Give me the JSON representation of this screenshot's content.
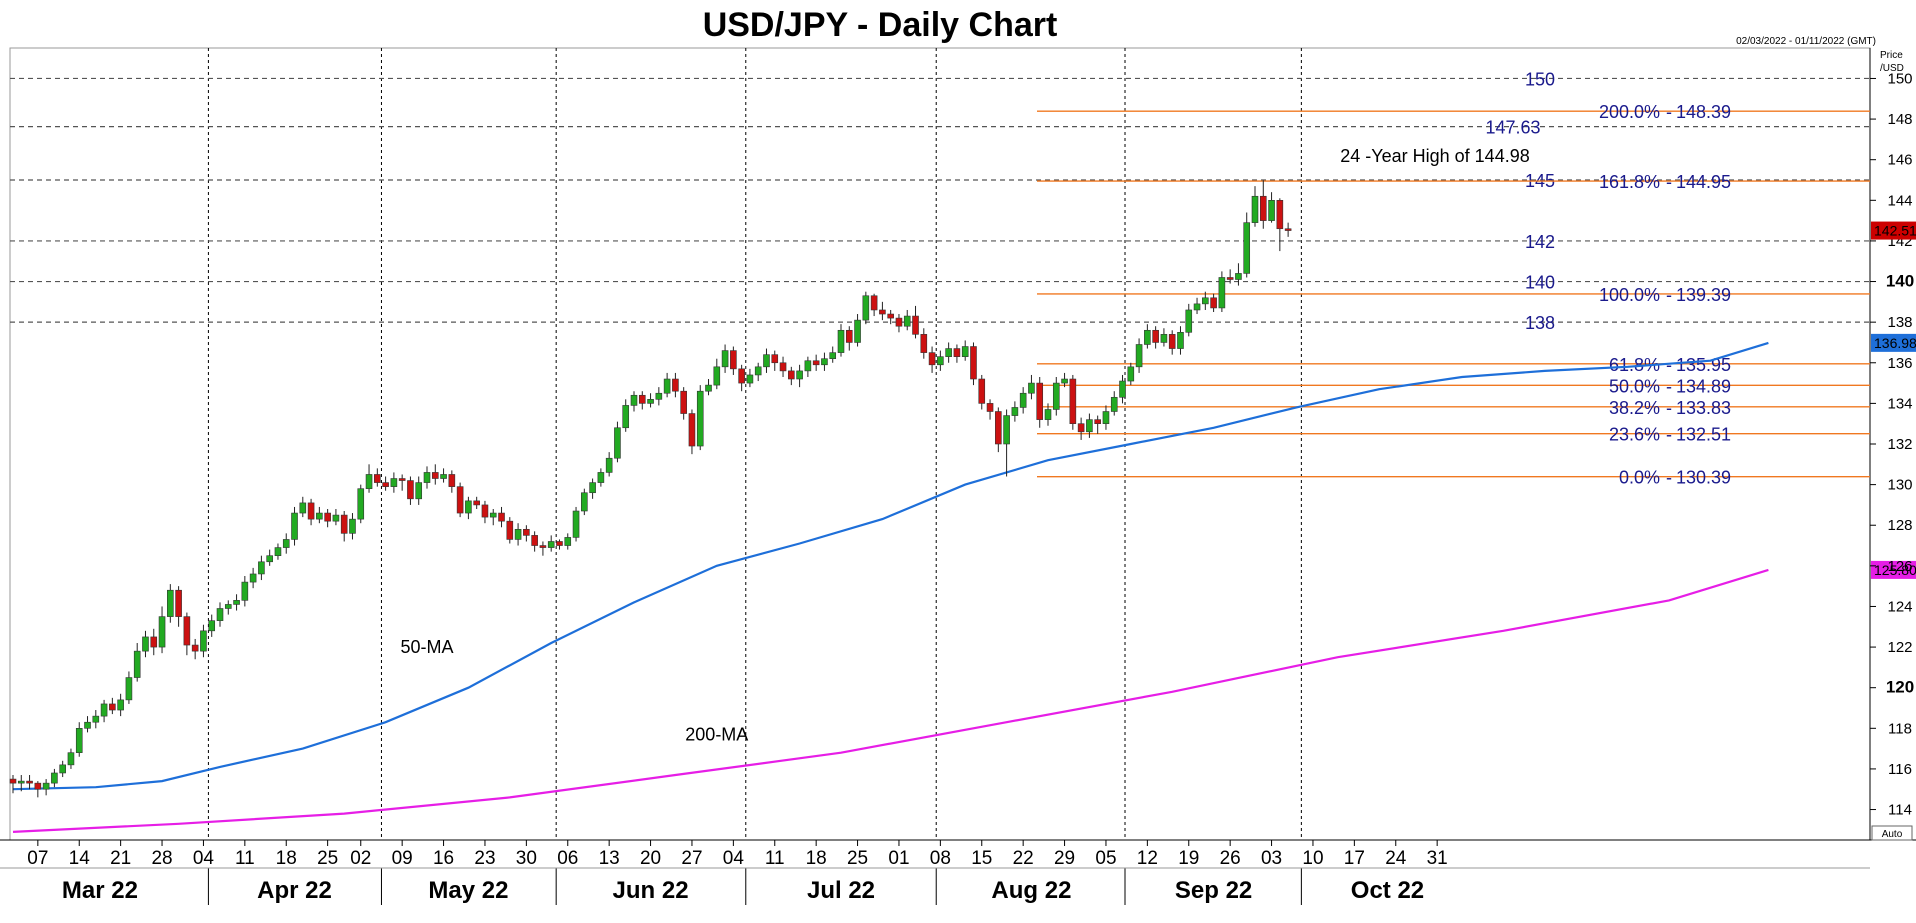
{
  "chart_data": {
    "type": "candlestick",
    "title": "USD/JPY - Daily Chart",
    "date_range": "02/03/2022 - 01/11/2022 (GMT)",
    "price_axis_label": "Price\n/USD",
    "auto_label": "Auto",
    "ylim": [
      112.5,
      151.5
    ],
    "y_ticks": [
      {
        "v": 114,
        "label": "114",
        "bold": false
      },
      {
        "v": 116,
        "label": "116",
        "bold": false
      },
      {
        "v": 118,
        "label": "118",
        "bold": false
      },
      {
        "v": 120,
        "label": "120",
        "bold": true
      },
      {
        "v": 122,
        "label": "122",
        "bold": false
      },
      {
        "v": 124,
        "label": "124",
        "bold": false
      },
      {
        "v": 126,
        "label": "126",
        "bold": false
      },
      {
        "v": 128,
        "label": "128",
        "bold": false
      },
      {
        "v": 130,
        "label": "130",
        "bold": false
      },
      {
        "v": 132,
        "label": "132",
        "bold": false
      },
      {
        "v": 134,
        "label": "134",
        "bold": false
      },
      {
        "v": 136,
        "label": "136",
        "bold": false
      },
      {
        "v": 138,
        "label": "138",
        "bold": false
      },
      {
        "v": 140,
        "label": "140",
        "bold": true
      },
      {
        "v": 142,
        "label": "142",
        "bold": false
      },
      {
        "v": 144,
        "label": "144",
        "bold": false
      },
      {
        "v": 146,
        "label": "146",
        "bold": false
      },
      {
        "v": 148,
        "label": "148",
        "bold": false
      },
      {
        "v": 150,
        "label": "150",
        "bold": false
      }
    ],
    "x_day_ticks": [
      "07",
      "14",
      "21",
      "28",
      "04",
      "11",
      "18",
      "25",
      "02",
      "09",
      "16",
      "23",
      "30",
      "06",
      "13",
      "20",
      "27",
      "04",
      "11",
      "18",
      "25",
      "01",
      "08",
      "15",
      "22",
      "29",
      "05",
      "12",
      "19",
      "26",
      "03",
      "10",
      "17",
      "24",
      "31"
    ],
    "x_months": [
      "Mar 22",
      "Apr 22",
      "May 22",
      "Jun 22",
      "Jul 22",
      "Aug 22",
      "Sep 22",
      "Oct 22"
    ],
    "horizontal_levels": [
      {
        "value": 150,
        "label": "150"
      },
      {
        "value": 147.63,
        "label": "147.63"
      },
      {
        "value": 145,
        "label": "145"
      },
      {
        "value": 142,
        "label": "142"
      },
      {
        "value": 140,
        "label": "140"
      },
      {
        "value": 138,
        "label": "138"
      }
    ],
    "fibonacci": [
      {
        "pct": "200.0%",
        "value": 148.39,
        "label": "148.39"
      },
      {
        "pct": "161.8%",
        "value": 144.95,
        "label": "144.95"
      },
      {
        "pct": "100.0%",
        "value": 139.39,
        "label": "139.39"
      },
      {
        "pct": "61.8%",
        "value": 135.95,
        "label": "135.95"
      },
      {
        "pct": "50.0%",
        "value": 134.89,
        "label": "134.89"
      },
      {
        "pct": "38.2%",
        "value": 133.83,
        "label": "133.83"
      },
      {
        "pct": "23.6%",
        "value": 132.51,
        "label": "132.51"
      },
      {
        "pct": "0.0%",
        "value": 130.39,
        "label": "130.39"
      }
    ],
    "annotation": "24 -Year High of 144.98",
    "series": [
      {
        "name": "50-MA",
        "color": "#1e6fd9",
        "last_label": "136.98",
        "points": [
          [
            0,
            115.0
          ],
          [
            10,
            115.1
          ],
          [
            18,
            115.4
          ],
          [
            25,
            116.1
          ],
          [
            35,
            117.0
          ],
          [
            45,
            118.3
          ],
          [
            55,
            120.0
          ],
          [
            65,
            122.2
          ],
          [
            75,
            124.2
          ],
          [
            85,
            126.0
          ],
          [
            95,
            127.1
          ],
          [
            105,
            128.3
          ],
          [
            115,
            130.0
          ],
          [
            125,
            131.2
          ],
          [
            135,
            132.0
          ],
          [
            145,
            132.8
          ],
          [
            155,
            133.8
          ],
          [
            165,
            134.7
          ],
          [
            175,
            135.3
          ],
          [
            185,
            135.6
          ],
          [
            195,
            135.8
          ],
          [
            205,
            136.1
          ],
          [
            212,
            136.98
          ]
        ]
      },
      {
        "name": "200-MA",
        "color": "#e61ee6",
        "last_label": "125.80",
        "points": [
          [
            0,
            112.9
          ],
          [
            20,
            113.3
          ],
          [
            40,
            113.8
          ],
          [
            60,
            114.6
          ],
          [
            80,
            115.7
          ],
          [
            100,
            116.8
          ],
          [
            120,
            118.3
          ],
          [
            140,
            119.8
          ],
          [
            160,
            121.5
          ],
          [
            180,
            122.8
          ],
          [
            200,
            124.3
          ],
          [
            212,
            125.8
          ]
        ]
      }
    ],
    "last_price": {
      "value": 142.51,
      "label": "142.51",
      "color": "#cc0000"
    },
    "candles": [
      [
        115.5,
        115.3,
        115.7,
        114.8
      ],
      [
        115.3,
        115.4,
        115.7,
        114.9
      ],
      [
        115.4,
        115.3,
        115.7,
        115.0
      ],
      [
        115.3,
        115.0,
        115.4,
        114.6
      ],
      [
        115.0,
        115.3,
        115.5,
        114.7
      ],
      [
        115.3,
        115.8,
        116.0,
        115.1
      ],
      [
        115.8,
        116.2,
        116.4,
        115.6
      ],
      [
        116.2,
        116.8,
        117.0,
        116.0
      ],
      [
        116.8,
        118.0,
        118.3,
        116.6
      ],
      [
        118.0,
        118.3,
        118.6,
        117.8
      ],
      [
        118.3,
        118.6,
        118.9,
        118.0
      ],
      [
        118.6,
        119.2,
        119.4,
        118.3
      ],
      [
        119.2,
        118.9,
        119.5,
        118.7
      ],
      [
        118.9,
        119.4,
        119.7,
        118.6
      ],
      [
        119.4,
        120.5,
        120.8,
        119.2
      ],
      [
        120.5,
        121.8,
        122.2,
        120.3
      ],
      [
        121.8,
        122.5,
        122.8,
        121.5
      ],
      [
        122.5,
        122.0,
        122.9,
        121.6
      ],
      [
        122.0,
        123.5,
        124.0,
        121.7
      ],
      [
        123.5,
        124.8,
        125.1,
        123.2
      ],
      [
        124.8,
        123.5,
        125.0,
        123.0
      ],
      [
        123.5,
        122.1,
        123.7,
        121.6
      ],
      [
        122.1,
        121.8,
        122.4,
        121.4
      ],
      [
        121.8,
        122.8,
        123.1,
        121.5
      ],
      [
        122.8,
        123.3,
        123.6,
        122.5
      ],
      [
        123.3,
        123.9,
        124.2,
        123.0
      ],
      [
        123.9,
        124.1,
        124.3,
        123.6
      ],
      [
        124.1,
        124.3,
        124.6,
        123.8
      ],
      [
        124.3,
        125.2,
        125.5,
        124.0
      ],
      [
        125.2,
        125.6,
        125.9,
        124.9
      ],
      [
        125.6,
        126.2,
        126.5,
        125.3
      ],
      [
        126.2,
        126.5,
        126.8,
        126.0
      ],
      [
        126.5,
        126.9,
        127.1,
        126.3
      ],
      [
        126.9,
        127.3,
        127.6,
        126.6
      ],
      [
        127.3,
        128.6,
        128.9,
        127.0
      ],
      [
        128.6,
        129.1,
        129.4,
        128.4
      ],
      [
        129.1,
        128.3,
        129.3,
        128.0
      ],
      [
        128.3,
        128.6,
        128.9,
        128.1
      ],
      [
        128.6,
        128.2,
        128.8,
        127.9
      ],
      [
        128.2,
        128.5,
        128.8,
        128.0
      ],
      [
        128.5,
        127.6,
        128.7,
        127.2
      ],
      [
        127.6,
        128.3,
        128.6,
        127.3
      ],
      [
        128.3,
        129.8,
        130.0,
        128.1
      ],
      [
        129.8,
        130.5,
        131.0,
        129.6
      ],
      [
        130.5,
        130.1,
        130.8,
        129.9
      ],
      [
        130.1,
        129.9,
        130.4,
        129.7
      ],
      [
        129.9,
        130.3,
        130.6,
        129.6
      ],
      [
        130.3,
        130.2,
        130.5,
        129.7
      ],
      [
        130.2,
        129.3,
        130.4,
        129.0
      ],
      [
        129.3,
        130.1,
        130.4,
        129.0
      ],
      [
        130.1,
        130.6,
        130.9,
        129.8
      ],
      [
        130.6,
        130.3,
        131.0,
        130.0
      ],
      [
        130.3,
        130.5,
        130.8,
        130.1
      ],
      [
        130.5,
        129.9,
        130.7,
        129.6
      ],
      [
        129.9,
        128.6,
        130.1,
        128.4
      ],
      [
        128.6,
        129.2,
        129.4,
        128.3
      ],
      [
        129.2,
        129.0,
        129.4,
        128.8
      ],
      [
        129.0,
        128.4,
        129.2,
        128.1
      ],
      [
        128.4,
        128.6,
        128.8,
        128.0
      ],
      [
        128.6,
        128.2,
        128.9,
        127.9
      ],
      [
        128.2,
        127.3,
        128.4,
        127.1
      ],
      [
        127.3,
        127.8,
        128.1,
        127.0
      ],
      [
        127.8,
        127.5,
        128.0,
        127.2
      ],
      [
        127.5,
        127.0,
        127.7,
        126.7
      ],
      [
        127.0,
        126.9,
        127.2,
        126.5
      ],
      [
        126.9,
        127.2,
        127.5,
        126.7
      ],
      [
        127.2,
        127.0,
        127.3,
        126.8
      ],
      [
        127.0,
        127.4,
        127.6,
        126.8
      ],
      [
        127.4,
        128.7,
        128.9,
        127.2
      ],
      [
        128.7,
        129.6,
        129.8,
        128.5
      ],
      [
        129.6,
        130.1,
        130.3,
        129.3
      ],
      [
        130.1,
        130.6,
        130.8,
        129.9
      ],
      [
        130.6,
        131.3,
        131.6,
        130.4
      ],
      [
        131.3,
        132.8,
        133.1,
        131.1
      ],
      [
        132.8,
        133.9,
        134.2,
        132.6
      ],
      [
        133.9,
        134.4,
        134.6,
        133.6
      ],
      [
        134.4,
        134.0,
        134.6,
        133.7
      ],
      [
        134.0,
        134.2,
        134.5,
        133.8
      ],
      [
        134.2,
        134.5,
        134.8,
        133.9
      ],
      [
        134.5,
        135.2,
        135.5,
        134.3
      ],
      [
        135.2,
        134.6,
        135.5,
        134.3
      ],
      [
        134.6,
        133.5,
        134.8,
        133.2
      ],
      [
        133.5,
        131.9,
        133.7,
        131.5
      ],
      [
        131.9,
        134.6,
        134.9,
        131.7
      ],
      [
        134.6,
        134.9,
        135.2,
        134.4
      ],
      [
        134.9,
        135.8,
        136.2,
        134.7
      ],
      [
        135.8,
        136.6,
        136.9,
        135.5
      ],
      [
        136.6,
        135.7,
        136.8,
        135.4
      ],
      [
        135.7,
        135.0,
        135.9,
        134.6
      ],
      [
        135.0,
        135.4,
        135.7,
        134.8
      ],
      [
        135.4,
        135.8,
        136.0,
        135.1
      ],
      [
        135.8,
        136.4,
        136.7,
        135.5
      ],
      [
        136.4,
        136.0,
        136.6,
        135.6
      ],
      [
        136.0,
        135.6,
        136.3,
        135.3
      ],
      [
        135.6,
        135.2,
        135.8,
        134.9
      ],
      [
        135.2,
        135.6,
        135.9,
        134.8
      ],
      [
        135.6,
        136.1,
        136.3,
        135.3
      ],
      [
        136.1,
        135.9,
        136.4,
        135.6
      ],
      [
        135.9,
        136.2,
        136.5,
        135.6
      ],
      [
        136.2,
        136.5,
        136.8,
        136.0
      ],
      [
        136.5,
        137.6,
        137.9,
        136.3
      ],
      [
        137.6,
        137.0,
        137.8,
        136.6
      ],
      [
        137.0,
        138.1,
        138.4,
        136.8
      ],
      [
        138.1,
        139.3,
        139.5,
        137.9
      ],
      [
        139.3,
        138.6,
        139.4,
        138.3
      ],
      [
        138.6,
        138.4,
        139.0,
        138.1
      ],
      [
        138.4,
        138.2,
        138.6,
        137.9
      ],
      [
        138.2,
        137.8,
        138.4,
        137.5
      ],
      [
        137.8,
        138.3,
        138.6,
        137.6
      ],
      [
        138.3,
        137.4,
        138.8,
        137.2
      ],
      [
        137.4,
        136.5,
        137.7,
        136.2
      ],
      [
        136.5,
        135.9,
        136.8,
        135.5
      ],
      [
        135.9,
        136.3,
        136.6,
        135.6
      ],
      [
        136.3,
        136.7,
        137.0,
        136.0
      ],
      [
        136.7,
        136.3,
        136.9,
        136.0
      ],
      [
        136.3,
        136.8,
        137.1,
        136.1
      ],
      [
        136.8,
        135.2,
        137.0,
        134.9
      ],
      [
        135.2,
        134.0,
        135.4,
        133.7
      ],
      [
        134.0,
        133.6,
        134.2,
        133.2
      ],
      [
        133.6,
        132.0,
        133.8,
        131.6
      ],
      [
        132.0,
        133.4,
        133.7,
        130.4
      ],
      [
        133.4,
        133.8,
        134.1,
        133.1
      ],
      [
        133.8,
        134.5,
        134.8,
        133.5
      ],
      [
        134.5,
        135.0,
        135.4,
        134.2
      ],
      [
        135.0,
        133.2,
        135.3,
        132.8
      ],
      [
        133.2,
        133.7,
        134.0,
        132.9
      ],
      [
        133.7,
        135.0,
        135.3,
        133.4
      ],
      [
        135.0,
        135.2,
        135.5,
        134.8
      ],
      [
        135.2,
        133.0,
        135.4,
        132.7
      ],
      [
        133.0,
        132.6,
        133.3,
        132.2
      ],
      [
        132.6,
        133.2,
        133.5,
        132.3
      ],
      [
        133.2,
        133.0,
        133.4,
        132.5
      ],
      [
        133.0,
        133.6,
        133.9,
        132.7
      ],
      [
        133.6,
        134.3,
        134.6,
        133.4
      ],
      [
        134.3,
        135.1,
        135.4,
        134.0
      ],
      [
        135.1,
        135.8,
        136.0,
        134.9
      ],
      [
        135.8,
        136.9,
        137.2,
        135.5
      ],
      [
        136.9,
        137.6,
        137.9,
        136.7
      ],
      [
        137.6,
        137.0,
        137.8,
        136.7
      ],
      [
        137.0,
        137.4,
        137.7,
        136.8
      ],
      [
        137.4,
        136.7,
        137.6,
        136.4
      ],
      [
        136.7,
        137.5,
        137.8,
        136.4
      ],
      [
        137.5,
        138.6,
        138.9,
        137.3
      ],
      [
        138.6,
        138.9,
        139.2,
        138.4
      ],
      [
        138.9,
        139.2,
        139.5,
        138.6
      ],
      [
        139.2,
        138.7,
        139.4,
        138.5
      ],
      [
        138.7,
        140.2,
        140.5,
        138.5
      ],
      [
        140.2,
        140.1,
        140.6,
        139.9
      ],
      [
        140.1,
        140.4,
        140.9,
        139.8
      ],
      [
        140.4,
        142.9,
        143.4,
        140.2
      ],
      [
        142.9,
        144.2,
        144.7,
        142.7
      ],
      [
        144.2,
        143.0,
        144.98,
        142.6
      ],
      [
        143.0,
        144.0,
        144.4,
        142.9
      ],
      [
        144.0,
        142.6,
        144.1,
        141.5
      ],
      [
        142.6,
        142.51,
        142.9,
        142.2
      ]
    ],
    "ma_labels_x": {
      "50-MA": 50,
      "200-MA": 85
    },
    "ma_labels_y": {
      "50-MA": 121.7,
      "200-MA": 117.4
    }
  }
}
